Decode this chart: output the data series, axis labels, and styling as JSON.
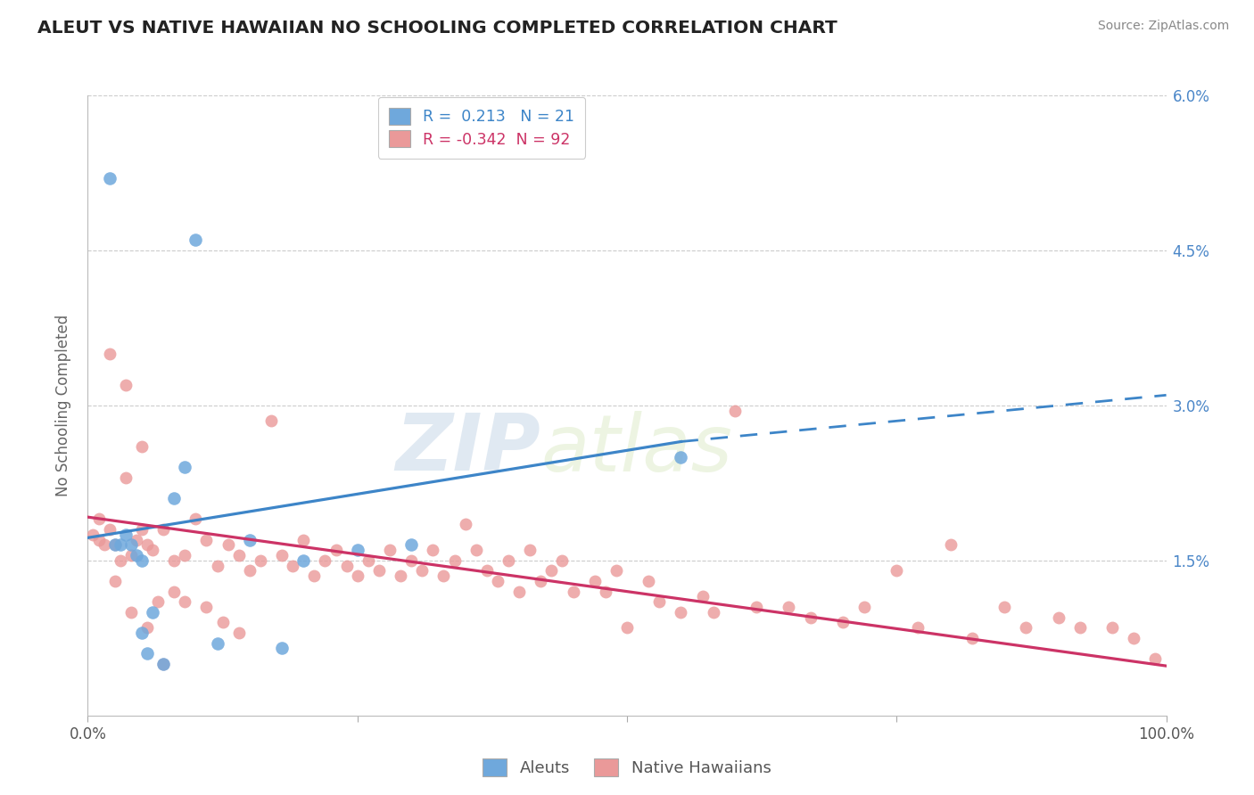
{
  "title": "ALEUT VS NATIVE HAWAIIAN NO SCHOOLING COMPLETED CORRELATION CHART",
  "source": "Source: ZipAtlas.com",
  "ylabel": "No Schooling Completed",
  "xmin": 0.0,
  "xmax": 100.0,
  "ymin": 0.0,
  "ymax": 6.0,
  "aleut_R": 0.213,
  "aleut_N": 21,
  "hawaiian_R": -0.342,
  "hawaiian_N": 92,
  "aleut_color": "#6fa8dc",
  "hawaiian_color": "#ea9999",
  "aleut_line_color": "#3d85c8",
  "hawaiian_line_color": "#cc3366",
  "background_color": "#ffffff",
  "grid_color": "#cccccc",
  "watermark_zip": "ZIP",
  "watermark_atlas": "atlas",
  "aleut_line_x0": 0.0,
  "aleut_line_y0": 1.72,
  "aleut_line_x1": 55.0,
  "aleut_line_y1": 2.65,
  "aleut_dash_x0": 55.0,
  "aleut_dash_y0": 2.65,
  "aleut_dash_x1": 100.0,
  "aleut_dash_y1": 3.1,
  "hawaiian_line_x0": 0.0,
  "hawaiian_line_y0": 1.92,
  "hawaiian_line_x1": 100.0,
  "hawaiian_line_y1": 0.48,
  "aleut_x": [
    2.0,
    2.5,
    3.0,
    3.5,
    4.0,
    4.5,
    5.0,
    5.0,
    5.5,
    6.0,
    7.0,
    8.0,
    9.0,
    10.0,
    12.0,
    15.0,
    18.0,
    20.0,
    25.0,
    30.0,
    55.0
  ],
  "aleut_y": [
    5.2,
    1.65,
    1.65,
    1.75,
    1.65,
    1.55,
    1.5,
    0.8,
    0.6,
    1.0,
    0.5,
    2.1,
    2.4,
    4.6,
    0.7,
    1.7,
    0.65,
    1.5,
    1.6,
    1.65,
    2.5
  ],
  "hawaiian_x": [
    0.5,
    1.0,
    1.5,
    2.0,
    2.5,
    3.0,
    3.5,
    4.0,
    4.5,
    5.0,
    5.5,
    6.0,
    7.0,
    8.0,
    9.0,
    10.0,
    11.0,
    12.0,
    13.0,
    14.0,
    15.0,
    16.0,
    17.0,
    18.0,
    19.0,
    20.0,
    21.0,
    22.0,
    23.0,
    24.0,
    25.0,
    26.0,
    27.0,
    28.0,
    29.0,
    30.0,
    31.0,
    32.0,
    33.0,
    34.0,
    35.0,
    36.0,
    37.0,
    38.0,
    39.0,
    40.0,
    41.0,
    42.0,
    43.0,
    44.0,
    45.0,
    47.0,
    48.0,
    49.0,
    50.0,
    52.0,
    53.0,
    55.0,
    57.0,
    58.0,
    60.0,
    62.0,
    65.0,
    67.0,
    70.0,
    72.0,
    75.0,
    77.0,
    80.0,
    82.0,
    85.0,
    87.0,
    90.0,
    92.0,
    95.0,
    97.0,
    99.0,
    2.0,
    3.5,
    5.0,
    6.5,
    8.0,
    1.0,
    2.5,
    4.0,
    5.5,
    7.0,
    9.0,
    11.0,
    12.5,
    14.0
  ],
  "hawaiian_y": [
    1.75,
    1.7,
    1.65,
    1.8,
    1.65,
    1.5,
    2.3,
    1.55,
    1.7,
    1.8,
    1.65,
    1.6,
    1.8,
    1.5,
    1.55,
    1.9,
    1.7,
    1.45,
    1.65,
    1.55,
    1.4,
    1.5,
    2.85,
    1.55,
    1.45,
    1.7,
    1.35,
    1.5,
    1.6,
    1.45,
    1.35,
    1.5,
    1.4,
    1.6,
    1.35,
    1.5,
    1.4,
    1.6,
    1.35,
    1.5,
    1.85,
    1.6,
    1.4,
    1.3,
    1.5,
    1.2,
    1.6,
    1.3,
    1.4,
    1.5,
    1.2,
    1.3,
    1.2,
    1.4,
    0.85,
    1.3,
    1.1,
    1.0,
    1.15,
    1.0,
    2.95,
    1.05,
    1.05,
    0.95,
    0.9,
    1.05,
    1.4,
    0.85,
    1.65,
    0.75,
    1.05,
    0.85,
    0.95,
    0.85,
    0.85,
    0.75,
    0.55,
    3.5,
    3.2,
    2.6,
    1.1,
    1.2,
    1.9,
    1.3,
    1.0,
    0.85,
    0.5,
    1.1,
    1.05,
    0.9,
    0.8
  ]
}
